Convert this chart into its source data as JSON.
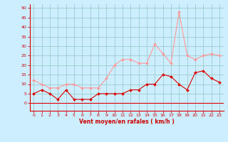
{
  "x": [
    0,
    1,
    2,
    3,
    4,
    5,
    6,
    7,
    8,
    9,
    10,
    11,
    12,
    13,
    14,
    15,
    16,
    17,
    18,
    19,
    20,
    21,
    22,
    23
  ],
  "mean_wind": [
    5,
    7,
    5,
    2,
    7,
    2,
    2,
    2,
    5,
    5,
    5,
    5,
    7,
    7,
    10,
    10,
    15,
    14,
    10,
    7,
    16,
    17,
    13,
    11
  ],
  "gust_wind": [
    12,
    10,
    8,
    8,
    10,
    10,
    8,
    8,
    8,
    13,
    20,
    23,
    23,
    21,
    21,
    31,
    26,
    21,
    48,
    25,
    23,
    25,
    26,
    25
  ],
  "background_color": "#cceeff",
  "grid_color": "#99cccc",
  "mean_color": "#dd0000",
  "gust_color": "#ff9999",
  "xlabel": "Vent moyen/en rafales ( km/h )",
  "yticks": [
    0,
    5,
    10,
    15,
    20,
    25,
    30,
    35,
    40,
    45,
    50
  ],
  "ylim": [
    -4,
    52
  ],
  "xlim": [
    -0.5,
    23.5
  ],
  "xlabel_color": "#cc0000",
  "tick_color": "#cc0000"
}
